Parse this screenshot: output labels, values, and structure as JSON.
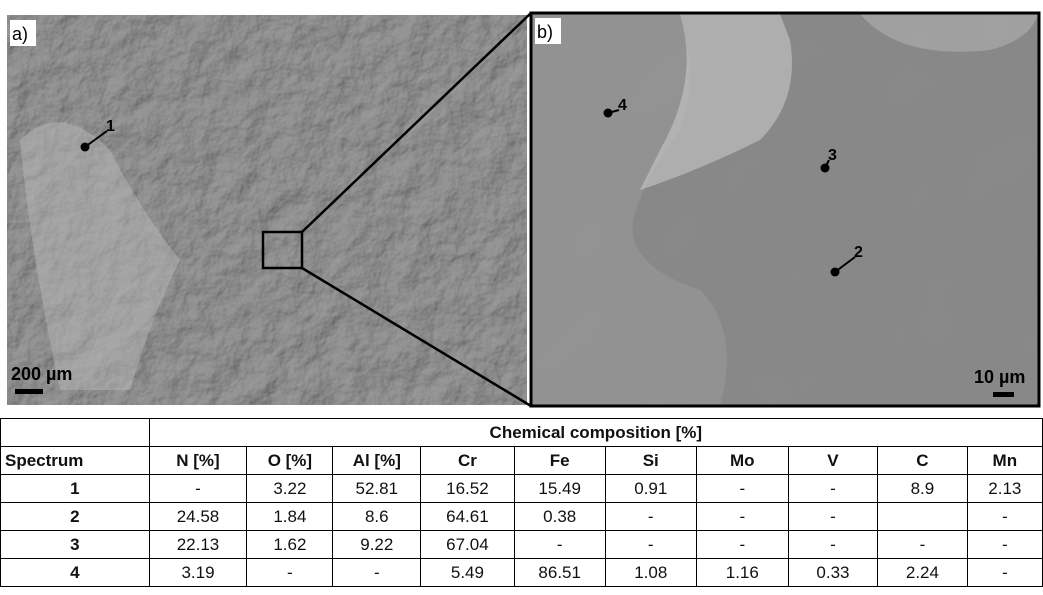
{
  "figure": {
    "panels": [
      {
        "label": "a)",
        "scale_bar": "200 µm",
        "points": [
          "1"
        ]
      },
      {
        "label": "b)",
        "scale_bar": "10 µm",
        "points": [
          "4",
          "3",
          "2"
        ]
      }
    ]
  },
  "table": {
    "group_header": "Chemical composition [%]",
    "columns": [
      "Spectrum",
      "N [%]",
      "O [%]",
      "Al [%]",
      "Cr",
      "Fe",
      "Si",
      "Mo",
      "V",
      "C",
      "Mn"
    ],
    "rows": [
      [
        1,
        "-",
        3.22,
        52.81,
        16.52,
        15.49,
        0.91,
        "-",
        "-",
        8.9,
        2.13
      ],
      [
        2,
        24.58,
        1.84,
        8.6,
        64.61,
        0.38,
        "-",
        "-",
        "-",
        null,
        "-"
      ],
      [
        3,
        22.13,
        1.62,
        9.22,
        67.04,
        "-",
        "-",
        "-",
        "-",
        "-",
        "-"
      ],
      [
        4,
        3.19,
        "-",
        "-",
        5.49,
        86.51,
        1.08,
        1.16,
        0.33,
        2.24,
        "-"
      ]
    ]
  }
}
